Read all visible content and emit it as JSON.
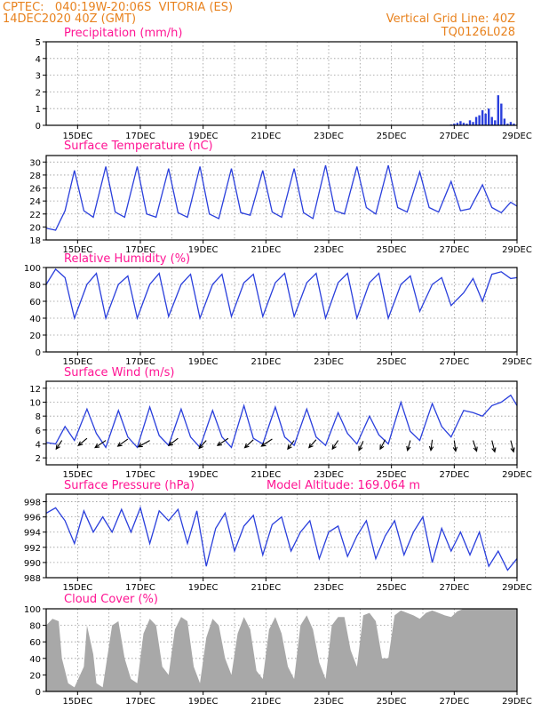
{
  "header": {
    "left_line1": "CPTEC:   040:19W-20:06S  VITORIA (ES)",
    "left_line2": "14DEC2020 40Z (GMT)",
    "right_line1": "Vertical Grid Line: 40Z",
    "right_line2": "TQ0126L028"
  },
  "colors": {
    "title": "#ff1493",
    "header": "#e8821e",
    "line": "#2a3fdc",
    "bars": "#2a3fdc",
    "cloud": "#a8a8a8",
    "arrows": "#000000"
  },
  "chart_data": [
    {
      "id": "precip",
      "type": "bar",
      "title": "Precipitation (mm/h)",
      "x_range_days": [
        14.0,
        29.0
      ],
      "ylim": [
        0,
        5
      ],
      "yticks": [
        "0",
        "1",
        "2",
        "3",
        "4",
        "5"
      ],
      "xtick_labels": [
        "15DEC",
        "17DEC",
        "19DEC",
        "21DEC",
        "23DEC",
        "25DEC",
        "27DEC",
        "29DEC"
      ],
      "x": [
        26.9,
        27.0,
        27.1,
        27.2,
        27.3,
        27.4,
        27.5,
        27.6,
        27.7,
        27.8,
        27.9,
        28.0,
        28.1,
        28.2,
        28.3,
        28.4,
        28.5,
        28.6,
        28.7,
        28.8,
        28.9
      ],
      "values": [
        0.05,
        0.1,
        0.15,
        0.25,
        0.15,
        0.1,
        0.3,
        0.2,
        0.5,
        0.6,
        0.9,
        0.7,
        1.0,
        0.5,
        0.3,
        1.8,
        1.3,
        0.4,
        0.1,
        0.2,
        0.1
      ]
    },
    {
      "id": "temp",
      "type": "line",
      "title": "Surface Temperature (nC)",
      "ylim": [
        18,
        31
      ],
      "yticks": [
        "18",
        "20",
        "22",
        "24",
        "26",
        "28",
        "30"
      ],
      "xtick_labels": [
        "15DEC",
        "17DEC",
        "19DEC",
        "21DEC",
        "23DEC",
        "25DEC",
        "27DEC",
        "29DEC"
      ],
      "x": [
        14.0,
        14.3,
        14.6,
        14.9,
        15.2,
        15.5,
        15.9,
        16.2,
        16.5,
        16.9,
        17.2,
        17.5,
        17.9,
        18.2,
        18.5,
        18.9,
        19.2,
        19.5,
        19.9,
        20.2,
        20.5,
        20.9,
        21.2,
        21.5,
        21.9,
        22.2,
        22.5,
        22.9,
        23.2,
        23.5,
        23.9,
        24.2,
        24.5,
        24.9,
        25.2,
        25.5,
        25.9,
        26.2,
        26.5,
        26.9,
        27.2,
        27.5,
        27.9,
        28.2,
        28.5,
        28.8,
        29.0
      ],
      "values": [
        19.8,
        19.5,
        22.5,
        28.7,
        22.5,
        21.5,
        29.3,
        22.3,
        21.5,
        29.3,
        22.0,
        21.5,
        29.0,
        22.2,
        21.5,
        29.3,
        22.0,
        21.3,
        29.0,
        22.2,
        21.8,
        28.7,
        22.3,
        21.5,
        29.0,
        22.2,
        21.3,
        29.5,
        22.5,
        22.0,
        29.3,
        23.0,
        22.0,
        29.5,
        23.0,
        22.3,
        28.5,
        23.0,
        22.3,
        27.0,
        22.5,
        22.8,
        26.5,
        23.0,
        22.2,
        23.8,
        23.2
      ]
    },
    {
      "id": "rh",
      "type": "line",
      "title": "Relative Humidity (%)",
      "ylim": [
        0,
        100
      ],
      "yticks": [
        "0",
        "20",
        "40",
        "60",
        "80",
        "100"
      ],
      "xtick_labels": [
        "15DEC",
        "17DEC",
        "19DEC",
        "21DEC",
        "23DEC",
        "25DEC",
        "27DEC",
        "29DEC"
      ],
      "x": [
        14.0,
        14.3,
        14.6,
        14.9,
        15.3,
        15.6,
        15.9,
        16.3,
        16.6,
        16.9,
        17.3,
        17.6,
        17.9,
        18.3,
        18.6,
        18.9,
        19.3,
        19.6,
        19.9,
        20.3,
        20.6,
        20.9,
        21.3,
        21.6,
        21.9,
        22.3,
        22.6,
        22.9,
        23.3,
        23.6,
        23.9,
        24.3,
        24.6,
        24.9,
        25.3,
        25.6,
        25.9,
        26.3,
        26.6,
        26.9,
        27.3,
        27.6,
        27.9,
        28.2,
        28.5,
        28.8,
        29.0
      ],
      "values": [
        80,
        98,
        88,
        40,
        80,
        93,
        40,
        80,
        90,
        40,
        80,
        93,
        42,
        80,
        92,
        40,
        80,
        92,
        42,
        82,
        92,
        42,
        82,
        93,
        42,
        82,
        93,
        40,
        82,
        93,
        40,
        82,
        93,
        40,
        80,
        90,
        48,
        80,
        88,
        55,
        70,
        87,
        60,
        92,
        95,
        87,
        88
      ]
    },
    {
      "id": "wind",
      "type": "line",
      "title": "Surface Wind (m/s)",
      "ylim": [
        1,
        13
      ],
      "yticks": [
        "2",
        "4",
        "6",
        "8",
        "10",
        "12"
      ],
      "xtick_labels": [
        "15DEC",
        "17DEC",
        "19DEC",
        "21DEC",
        "23DEC",
        "25DEC",
        "27DEC",
        "29DEC"
      ],
      "x": [
        14.0,
        14.3,
        14.6,
        14.9,
        15.3,
        15.6,
        15.9,
        16.3,
        16.6,
        16.9,
        17.3,
        17.6,
        17.9,
        18.3,
        18.6,
        18.9,
        19.3,
        19.6,
        19.9,
        20.3,
        20.6,
        20.9,
        21.3,
        21.6,
        21.9,
        22.3,
        22.6,
        22.9,
        23.3,
        23.6,
        23.9,
        24.3,
        24.6,
        24.9,
        25.3,
        25.6,
        25.9,
        26.3,
        26.6,
        26.9,
        27.3,
        27.6,
        27.9,
        28.2,
        28.5,
        28.8,
        29.0
      ],
      "values": [
        4.2,
        4.0,
        6.5,
        4.5,
        9.0,
        5.5,
        3.5,
        8.8,
        5.0,
        3.5,
        9.3,
        5.2,
        3.8,
        9.0,
        5.0,
        3.5,
        8.8,
        5.0,
        3.5,
        9.5,
        4.8,
        4.0,
        9.3,
        5.0,
        3.8,
        9.0,
        5.0,
        3.8,
        8.5,
        5.5,
        4.0,
        8.0,
        5.3,
        4.0,
        10.0,
        5.8,
        4.5,
        9.8,
        6.5,
        5.0,
        8.8,
        8.5,
        8.0,
        9.5,
        10.0,
        11.0,
        9.5
      ],
      "arrows_x": [
        14.5,
        15.3,
        15.9,
        16.6,
        17.3,
        18.2,
        19.1,
        19.8,
        20.6,
        21.2,
        21.9,
        22.6,
        23.3,
        24.1,
        24.8,
        25.6,
        26.3,
        27.0,
        27.6,
        28.2,
        28.8
      ],
      "arrows_y": [
        4.5,
        4.8,
        4.5,
        4.7,
        4.5,
        4.8,
        4.5,
        4.8,
        4.6,
        4.7,
        4.5,
        4.6,
        4.5,
        4.4,
        4.6,
        4.5,
        4.6,
        4.5,
        4.5,
        4.5,
        4.5
      ],
      "arrows_u": [
        0.8,
        1.2,
        1.5,
        1.4,
        1.6,
        1.3,
        1.0,
        1.5,
        1.2,
        1.5,
        0.9,
        1.0,
        0.8,
        0.6,
        0.7,
        0.4,
        0.2,
        -0.2,
        -0.5,
        -0.4,
        -0.4
      ],
      "arrows_v": [
        -1.2,
        -1.0,
        -1.0,
        -1.0,
        -0.9,
        -1.0,
        -1.1,
        -1.0,
        -1.1,
        -1.0,
        -1.2,
        -1.1,
        -1.2,
        -1.3,
        -1.3,
        -1.4,
        -1.5,
        -1.5,
        -1.5,
        -1.6,
        -1.6
      ]
    },
    {
      "id": "press",
      "type": "line",
      "title": "Surface Pressure (hPa)",
      "annotation": "Model Altitude: 169.064 m",
      "ylim": [
        988,
        999
      ],
      "yticks": [
        "988",
        "990",
        "992",
        "994",
        "996",
        "998"
      ],
      "xtick_labels": [
        "15DEC",
        "17DEC",
        "19DEC",
        "21DEC",
        "23DEC",
        "25DEC",
        "27DEC",
        "29DEC"
      ],
      "x": [
        14.0,
        14.3,
        14.6,
        14.9,
        15.2,
        15.5,
        15.8,
        16.1,
        16.4,
        16.7,
        17.0,
        17.3,
        17.6,
        17.9,
        18.2,
        18.5,
        18.8,
        19.1,
        19.4,
        19.7,
        20.0,
        20.3,
        20.6,
        20.9,
        21.2,
        21.5,
        21.8,
        22.1,
        22.4,
        22.7,
        23.0,
        23.3,
        23.6,
        23.9,
        24.2,
        24.5,
        24.8,
        25.1,
        25.4,
        25.7,
        26.0,
        26.3,
        26.6,
        26.9,
        27.2,
        27.5,
        27.8,
        28.1,
        28.4,
        28.7,
        29.0
      ],
      "values": [
        996.5,
        997.2,
        995.5,
        992.5,
        996.8,
        994.0,
        996.0,
        994.0,
        997.0,
        994.0,
        997.2,
        992.5,
        996.8,
        995.5,
        997.0,
        992.5,
        996.8,
        989.5,
        994.5,
        996.5,
        991.5,
        994.8,
        996.2,
        991.0,
        995.0,
        996.0,
        991.5,
        994.0,
        995.5,
        990.5,
        994.0,
        994.8,
        990.8,
        993.5,
        995.5,
        990.5,
        993.5,
        995.5,
        991.0,
        994.0,
        996.0,
        990.0,
        994.5,
        991.5,
        994.0,
        991.0,
        994.0,
        989.5,
        991.5,
        989.0,
        990.5
      ]
    },
    {
      "id": "cloud",
      "type": "area",
      "title": "Cloud Cover (%)",
      "ylim": [
        0,
        100
      ],
      "yticks": [
        "0",
        "20",
        "40",
        "60",
        "80",
        "100"
      ],
      "xtick_labels": [
        "15DEC",
        "17DEC",
        "19DEC",
        "21DEC",
        "23DEC",
        "25DEC",
        "27DEC",
        "29DEC"
      ],
      "x": [
        14.0,
        14.2,
        14.4,
        14.5,
        14.7,
        14.9,
        15.2,
        15.3,
        15.5,
        15.6,
        15.8,
        16.1,
        16.3,
        16.5,
        16.7,
        16.9,
        17.1,
        17.3,
        17.5,
        17.7,
        17.9,
        18.1,
        18.3,
        18.5,
        18.7,
        18.9,
        19.1,
        19.3,
        19.5,
        19.7,
        19.9,
        20.1,
        20.3,
        20.5,
        20.7,
        20.9,
        21.1,
        21.3,
        21.5,
        21.7,
        21.9,
        22.1,
        22.3,
        22.5,
        22.7,
        22.9,
        23.1,
        23.3,
        23.5,
        23.7,
        23.9,
        24.1,
        24.3,
        24.5,
        24.7,
        24.9,
        25.1,
        25.3,
        25.5,
        25.7,
        25.9,
        26.1,
        26.3,
        26.5,
        26.7,
        26.9,
        27.1,
        27.3,
        27.5,
        27.7,
        27.9,
        28.1,
        28.3,
        28.5,
        28.7,
        29.0
      ],
      "values": [
        80,
        88,
        85,
        40,
        10,
        5,
        30,
        80,
        45,
        10,
        5,
        80,
        85,
        40,
        15,
        10,
        70,
        88,
        80,
        30,
        20,
        75,
        90,
        85,
        30,
        10,
        65,
        88,
        80,
        40,
        20,
        70,
        90,
        75,
        25,
        15,
        75,
        90,
        70,
        30,
        15,
        80,
        92,
        75,
        35,
        15,
        80,
        90,
        90,
        50,
        30,
        92,
        95,
        85,
        40,
        40,
        92,
        98,
        95,
        92,
        88,
        95,
        98,
        95,
        92,
        90,
        97,
        100,
        100,
        100,
        100,
        100,
        100,
        100,
        100,
        100
      ]
    }
  ]
}
